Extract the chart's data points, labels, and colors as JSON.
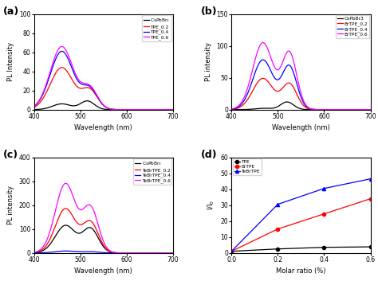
{
  "panel_a": {
    "ylabel": "PL Intensity",
    "xlabel": "Wavelength (nm)",
    "xlim": [
      400,
      700
    ],
    "ylim": [
      0,
      100
    ],
    "yticks": [
      0,
      20,
      40,
      60,
      80,
      100
    ],
    "xticks": [
      400,
      500,
      600,
      700
    ],
    "series": [
      {
        "label": "CsPbBr$_3$",
        "color": "#000000",
        "peak1_mu": 460,
        "peak1_sig": 20,
        "peak1_amp": 6,
        "peak2_mu": 515,
        "peak2_sig": 15,
        "peak2_amp": 9
      },
      {
        "label": "TPE_0.2",
        "color": "#ff0000",
        "peak1_mu": 460,
        "peak1_sig": 25,
        "peak1_amp": 44,
        "peak2_mu": 520,
        "peak2_sig": 17,
        "peak2_amp": 20
      },
      {
        "label": "TPE_0.4",
        "color": "#0000ff",
        "peak1_mu": 460,
        "peak1_sig": 25,
        "peak1_amp": 61,
        "peak2_mu": 520,
        "peak2_sig": 17,
        "peak2_amp": 21
      },
      {
        "label": "TPE_0.6",
        "color": "#ff00ff",
        "peak1_mu": 460,
        "peak1_sig": 25,
        "peak1_amp": 66,
        "peak2_mu": 520,
        "peak2_sig": 17,
        "peak2_amp": 22
      }
    ]
  },
  "panel_b": {
    "ylabel": "PL intensity",
    "xlabel": "Wavelength (nm)",
    "xlim": [
      400,
      700
    ],
    "ylim": [
      0,
      150
    ],
    "yticks": [
      0,
      50,
      100,
      150
    ],
    "xticks": [
      400,
      500,
      600,
      700
    ],
    "series": [
      {
        "label": "CsPbBr3",
        "color": "#000000",
        "peak1_mu": 470,
        "peak1_sig": 18,
        "peak1_amp": 2,
        "peak2_mu": 520,
        "peak2_sig": 14,
        "peak2_amp": 12
      },
      {
        "label": "BrTPE_0.2",
        "color": "#ff0000",
        "peak1_mu": 468,
        "peak1_sig": 22,
        "peak1_amp": 49,
        "peak2_mu": 525,
        "peak2_sig": 16,
        "peak2_amp": 40
      },
      {
        "label": "BrTPE_0.4",
        "color": "#0000ff",
        "peak1_mu": 468,
        "peak1_sig": 22,
        "peak1_amp": 78,
        "peak2_mu": 525,
        "peak2_sig": 16,
        "peak2_amp": 67
      },
      {
        "label": "BrTPE_0.6",
        "color": "#ff00ff",
        "peak1_mu": 468,
        "peak1_sig": 22,
        "peak1_amp": 105,
        "peak2_mu": 525,
        "peak2_sig": 16,
        "peak2_amp": 88
      }
    ]
  },
  "panel_c": {
    "ylabel": "PL intensity",
    "xlabel": "Wavelength (nm)",
    "xlim": [
      400,
      700
    ],
    "ylim": [
      0,
      400
    ],
    "yticks": [
      0,
      100,
      200,
      300,
      400
    ],
    "xticks": [
      400,
      500,
      600,
      700
    ],
    "series": [
      {
        "label": "CsPbBr$_3$",
        "color": "#000000",
        "peak1_mu": 468,
        "peak1_sig": 22,
        "peak1_amp": 115,
        "peak2_mu": 522,
        "peak2_sig": 17,
        "peak2_amp": 100
      },
      {
        "label": "TeBrTPE_0.2",
        "color": "#ff0000",
        "peak1_mu": 468,
        "peak1_sig": 22,
        "peak1_amp": 185,
        "peak2_mu": 522,
        "peak2_sig": 17,
        "peak2_amp": 125
      },
      {
        "label": "TeBrTPE_0.4",
        "color": "#0000ff",
        "peak1_mu": 468,
        "peak1_sig": 22,
        "peak1_amp": 8,
        "peak2_mu": 522,
        "peak2_sig": 17,
        "peak2_amp": 5
      },
      {
        "label": "TeBrTPE_0.6",
        "color": "#ff00ff",
        "peak1_mu": 468,
        "peak1_sig": 22,
        "peak1_amp": 290,
        "peak2_mu": 522,
        "peak2_sig": 17,
        "peak2_amp": 185
      }
    ]
  },
  "panel_d": {
    "ylabel": "I/I$_0$",
    "xlabel": "Molar ratio (%)",
    "xlim": [
      0.0,
      0.6
    ],
    "ylim": [
      0,
      60
    ],
    "yticks": [
      0,
      10,
      20,
      30,
      40,
      50,
      60
    ],
    "xticks": [
      0.0,
      0.2,
      0.4,
      0.6
    ],
    "series": [
      {
        "label": "TPE",
        "color": "#000000",
        "marker": "o",
        "x": [
          0.0,
          0.2,
          0.4,
          0.6
        ],
        "y": [
          1.0,
          2.5,
          3.5,
          3.8
        ]
      },
      {
        "label": "BrTPE",
        "color": "#ff0000",
        "marker": "o",
        "x": [
          0.0,
          0.2,
          0.4,
          0.6
        ],
        "y": [
          1.0,
          15.0,
          24.5,
          34.0
        ]
      },
      {
        "label": "TeBrTPE",
        "color": "#0000ff",
        "marker": "^",
        "x": [
          0.0,
          0.2,
          0.4,
          0.6
        ],
        "y": [
          1.0,
          30.5,
          40.5,
          46.5
        ]
      }
    ]
  }
}
